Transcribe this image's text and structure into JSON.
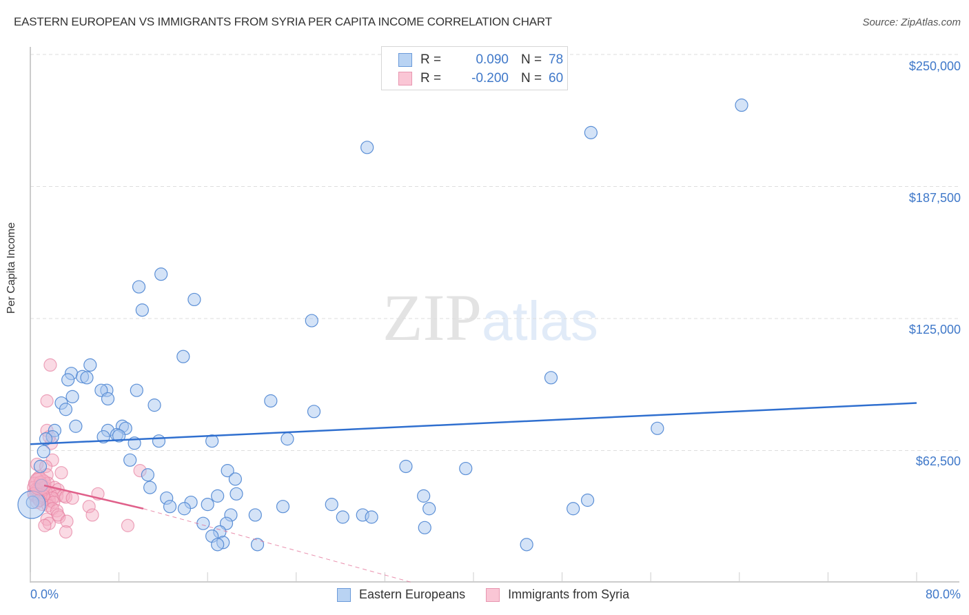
{
  "header": {
    "title": "EASTERN EUROPEAN VS IMMIGRANTS FROM SYRIA PER CAPITA INCOME CORRELATION CHART",
    "source": "Source: ZipAtlas.com"
  },
  "legend": {
    "rows": [
      {
        "r_label": "R =",
        "r_value": "0.090",
        "n_label": "N =",
        "n_value": "78",
        "color": "#a9c8f0",
        "border": "#5b8fd6"
      },
      {
        "r_label": "R =",
        "r_value": "-0.200",
        "n_label": "N =",
        "n_value": "60",
        "color": "#f8c3d3",
        "border": "#e57fa0"
      }
    ]
  },
  "bottom_legend": {
    "items": [
      {
        "label": "Eastern Europeans",
        "color": "#a9c8f0",
        "border": "#5b8fd6"
      },
      {
        "label": "Immigrants from Syria",
        "color": "#f8c3d3",
        "border": "#e57fa0"
      }
    ]
  },
  "axes": {
    "ylabel": "Per Capita Income",
    "yticks": [
      "$250,000",
      "$187,500",
      "$125,000",
      "$62,500"
    ],
    "xtick_left": "0.0%",
    "xtick_right": "80.0%"
  },
  "watermark": {
    "zip": "ZIP",
    "atlas": "atlas"
  },
  "colors": {
    "blue_fill": "#a9c8f0",
    "blue_stroke": "#5b8fd6",
    "blue_line": "#2f6fcf",
    "pink_fill": "#f5aec4",
    "pink_stroke": "#e57fa0",
    "pink_line": "#e0608a",
    "tick_label": "#3f78c9",
    "grid": "#dddddd"
  },
  "chart_data": {
    "type": "scatter",
    "title": "EASTERN EUROPEAN VS IMMIGRANTS FROM SYRIA PER CAPITA INCOME CORRELATION CHART",
    "xlabel": "",
    "ylabel": "Per Capita Income",
    "xlim": [
      0,
      80
    ],
    "ylim": [
      0,
      256000
    ],
    "x_unit": "%",
    "yticks": [
      62500,
      125000,
      187500,
      250000
    ],
    "grid": true,
    "legend_position": "top-center",
    "series": [
      {
        "name": "Eastern Europeans",
        "R": 0.09,
        "N": 78,
        "trend": {
          "x": [
            0,
            80
          ],
          "y": [
            65500,
            85000
          ]
        },
        "points": [
          [
            64.2,
            226000
          ],
          [
            50.6,
            213000
          ],
          [
            30.4,
            206000
          ],
          [
            11.8,
            146000
          ],
          [
            9.8,
            140000
          ],
          [
            14.8,
            134000
          ],
          [
            10.1,
            129000
          ],
          [
            25.4,
            124000
          ],
          [
            13.8,
            107000
          ],
          [
            5.4,
            103000
          ],
          [
            3.7,
            99000
          ],
          [
            4.7,
            97500
          ],
          [
            5.1,
            97000
          ],
          [
            3.4,
            96000
          ],
          [
            47.0,
            97000
          ],
          [
            6.9,
            91000
          ],
          [
            9.6,
            91000
          ],
          [
            6.4,
            91000
          ],
          [
            3.8,
            88000
          ],
          [
            7.0,
            87000
          ],
          [
            21.7,
            86000
          ],
          [
            2.8,
            85000
          ],
          [
            11.2,
            84000
          ],
          [
            3.2,
            82000
          ],
          [
            25.6,
            81000
          ],
          [
            4.1,
            74000
          ],
          [
            8.3,
            74000
          ],
          [
            8.6,
            73000
          ],
          [
            7.0,
            72000
          ],
          [
            2.2,
            72000
          ],
          [
            56.6,
            73000
          ],
          [
            6.6,
            69000
          ],
          [
            7.8,
            70000
          ],
          [
            8.0,
            69500
          ],
          [
            2.0,
            69000
          ],
          [
            1.4,
            68000
          ],
          [
            23.2,
            68000
          ],
          [
            11.6,
            67000
          ],
          [
            9.4,
            66000
          ],
          [
            16.4,
            67000
          ],
          [
            1.2,
            62000
          ],
          [
            9.0,
            58000
          ],
          [
            33.9,
            55000
          ],
          [
            39.3,
            54000
          ],
          [
            0.9,
            55000
          ],
          [
            17.8,
            53000
          ],
          [
            10.6,
            51000
          ],
          [
            18.5,
            49000
          ],
          [
            10.8,
            45000
          ],
          [
            18.6,
            42000
          ],
          [
            16.9,
            41000
          ],
          [
            12.3,
            40000
          ],
          [
            35.5,
            41000
          ],
          [
            50.3,
            39000
          ],
          [
            14.5,
            38000
          ],
          [
            16.0,
            37000
          ],
          [
            22.8,
            36000
          ],
          [
            27.2,
            37000
          ],
          [
            12.6,
            36000
          ],
          [
            13.9,
            35000
          ],
          [
            49.0,
            35000
          ],
          [
            36.0,
            35000
          ],
          [
            18.1,
            32000
          ],
          [
            30.0,
            32000
          ],
          [
            20.3,
            32000
          ],
          [
            28.2,
            31000
          ],
          [
            30.8,
            31000
          ],
          [
            15.6,
            28000
          ],
          [
            17.7,
            28000
          ],
          [
            17.1,
            24000
          ],
          [
            35.6,
            26000
          ],
          [
            16.4,
            22000
          ],
          [
            17.4,
            19000
          ],
          [
            16.9,
            18000
          ],
          [
            20.5,
            18000
          ],
          [
            44.8,
            18000
          ],
          [
            0.2,
            38000
          ],
          [
            1.0,
            46000
          ]
        ]
      },
      {
        "name": "Immigrants from Syria",
        "R": -0.2,
        "N": 60,
        "trend": {
          "x": [
            0,
            10.2
          ],
          "y": [
            46000,
            35000
          ],
          "dashed_extension": {
            "x": [
              10.2,
              34.5
            ],
            "y": [
              35000,
              0
            ]
          }
        },
        "points": [
          [
            1.8,
            103000
          ],
          [
            1.5,
            86000
          ],
          [
            1.5,
            72000
          ],
          [
            1.9,
            66000
          ],
          [
            1.7,
            69000
          ],
          [
            2.0,
            58000
          ],
          [
            0.6,
            56000
          ],
          [
            1.4,
            55000
          ],
          [
            2.8,
            52000
          ],
          [
            1.5,
            51000
          ],
          [
            0.8,
            50000
          ],
          [
            1.2,
            48000
          ],
          [
            0.6,
            49000
          ],
          [
            1.6,
            47000
          ],
          [
            9.9,
            53000
          ],
          [
            0.4,
            47000
          ],
          [
            0.9,
            46000
          ],
          [
            0.3,
            45000
          ],
          [
            0.7,
            44000
          ],
          [
            1.0,
            44500
          ],
          [
            1.3,
            45000
          ],
          [
            2.2,
            45000
          ],
          [
            2.5,
            44000
          ],
          [
            0.5,
            43000
          ],
          [
            0.8,
            42000
          ],
          [
            1.1,
            42500
          ],
          [
            1.4,
            43000
          ],
          [
            1.8,
            42000
          ],
          [
            2.4,
            41000
          ],
          [
            3.0,
            41000
          ],
          [
            3.2,
            40500
          ],
          [
            0.4,
            41000
          ],
          [
            0.7,
            40000
          ],
          [
            1.0,
            40500
          ],
          [
            1.3,
            39500
          ],
          [
            1.7,
            39000
          ],
          [
            2.0,
            40000
          ],
          [
            3.8,
            40000
          ],
          [
            6.1,
            42000
          ],
          [
            0.6,
            38000
          ],
          [
            1.1,
            37000
          ],
          [
            1.6,
            36500
          ],
          [
            2.1,
            38000
          ],
          [
            5.3,
            36000
          ],
          [
            2.0,
            35000
          ],
          [
            2.4,
            34000
          ],
          [
            2.6,
            31000
          ],
          [
            1.5,
            30000
          ],
          [
            2.5,
            32000
          ],
          [
            5.6,
            32000
          ],
          [
            3.3,
            29000
          ],
          [
            1.7,
            28000
          ],
          [
            1.3,
            27000
          ],
          [
            8.8,
            27000
          ],
          [
            3.2,
            24000
          ],
          [
            0.5,
            44000
          ],
          [
            0.9,
            47500
          ],
          [
            1.2,
            41000
          ],
          [
            0.3,
            42000
          ],
          [
            0.8,
            39000
          ]
        ]
      }
    ]
  }
}
